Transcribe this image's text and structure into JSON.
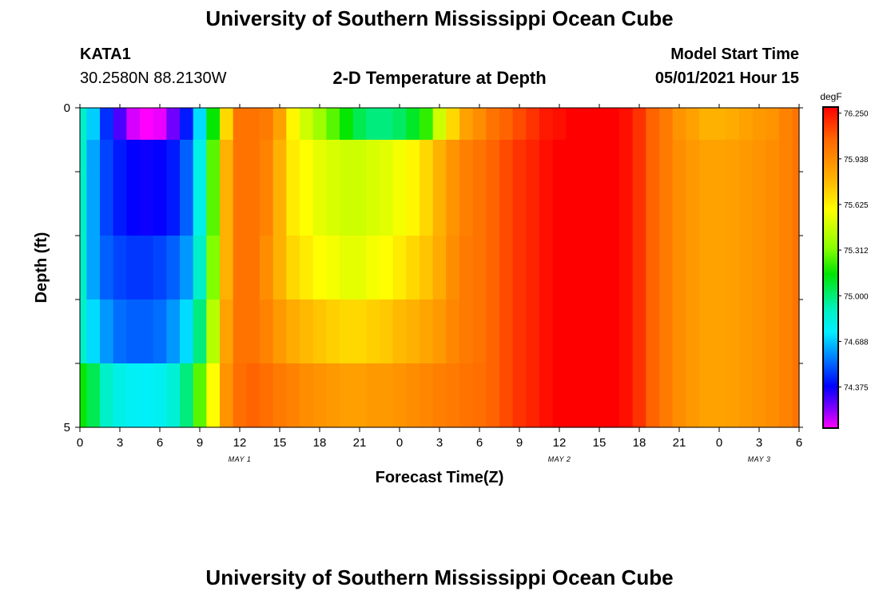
{
  "header": {
    "title": "University of Southern Mississippi Ocean Cube",
    "station": "KATA1",
    "coords": "30.2580N  88.2130W",
    "subtitle": "2-D Temperature at Depth",
    "model_start_label": "Model Start Time",
    "model_start_value": "05/01/2021 Hour 15"
  },
  "footer": {
    "title": "University of Southern Mississippi Ocean Cube"
  },
  "chart_data": {
    "type": "heatmap",
    "title": "2-D Temperature at Depth",
    "xlabel": "Forecast Time(Z)",
    "ylabel": "Depth (ft)",
    "x_tick_labels": [
      "0",
      "3",
      "6",
      "9",
      "12",
      "15",
      "18",
      "21",
      "0",
      "3",
      "6",
      "9",
      "12",
      "15",
      "18",
      "21",
      "0",
      "3",
      "6"
    ],
    "x_date_labels": [
      {
        "label": "MAY 1",
        "at_tick": 4
      },
      {
        "label": "MAY 2",
        "at_tick": 12
      },
      {
        "label": "MAY 3",
        "at_tick": 17
      }
    ],
    "x_hours_range": [
      0,
      54
    ],
    "y_tick_labels": [
      "0",
      "5"
    ],
    "ylim": [
      0,
      5
    ],
    "y_depth_levels": [
      0.5,
      1.5,
      2.5,
      3.5,
      4.5
    ],
    "colorbar": {
      "unit": "degF",
      "tick_labels": [
        "76.250",
        "75.938",
        "75.625",
        "75.312",
        "75.000",
        "74.688",
        "74.375"
      ],
      "min": 74.22,
      "max": 76.25
    },
    "time_hours": [
      0,
      1,
      2,
      3,
      4,
      5,
      6,
      7,
      8,
      9,
      10,
      11,
      12,
      13,
      14,
      15,
      16,
      17,
      18,
      19,
      20,
      21,
      22,
      23,
      24,
      25,
      26,
      27,
      28,
      29,
      30,
      31,
      32,
      33,
      34,
      35,
      36,
      37,
      38,
      39,
      40,
      41,
      42,
      43,
      44,
      45,
      46,
      47,
      48,
      49,
      50,
      51,
      52,
      53,
      54
    ],
    "temperature_degF": [
      [
        74.95,
        74.78,
        74.55,
        74.4,
        74.26,
        74.22,
        74.24,
        74.36,
        74.52,
        74.8,
        75.2,
        75.7,
        76.0,
        76.0,
        75.98,
        75.85,
        75.62,
        75.5,
        75.4,
        75.3,
        75.2,
        75.1,
        75.05,
        75.05,
        75.08,
        75.15,
        75.25,
        75.5,
        75.7,
        75.85,
        75.92,
        76.0,
        76.05,
        76.1,
        76.15,
        76.2,
        76.22,
        76.25,
        76.25,
        76.25,
        76.25,
        76.22,
        76.15,
        76.05,
        75.98,
        75.9,
        75.85,
        75.8,
        75.8,
        75.82,
        75.85,
        75.88,
        75.9,
        75.95,
        76.0
      ],
      [
        74.95,
        74.72,
        74.58,
        74.52,
        74.48,
        74.47,
        74.48,
        74.52,
        74.62,
        74.88,
        75.3,
        75.8,
        76.0,
        76.0,
        75.95,
        75.8,
        75.65,
        75.6,
        75.55,
        75.52,
        75.5,
        75.5,
        75.52,
        75.54,
        75.58,
        75.62,
        75.7,
        75.8,
        75.9,
        75.96,
        76.0,
        76.05,
        76.1,
        76.15,
        76.18,
        76.22,
        76.25,
        76.25,
        76.25,
        76.25,
        76.25,
        76.22,
        76.15,
        76.05,
        75.98,
        75.92,
        75.88,
        75.85,
        75.85,
        75.86,
        75.88,
        75.9,
        75.92,
        75.95,
        76.0
      ],
      [
        74.95,
        74.72,
        74.62,
        74.58,
        74.56,
        74.56,
        74.58,
        74.62,
        74.7,
        74.95,
        75.35,
        75.8,
        76.0,
        76.0,
        75.92,
        75.8,
        75.7,
        75.65,
        75.6,
        75.58,
        75.55,
        75.55,
        75.58,
        75.6,
        75.65,
        75.7,
        75.75,
        75.82,
        75.92,
        75.98,
        76.0,
        76.05,
        76.1,
        76.15,
        76.18,
        76.22,
        76.25,
        76.25,
        76.25,
        76.25,
        76.25,
        76.22,
        76.15,
        76.05,
        75.98,
        75.92,
        75.88,
        75.85,
        75.85,
        75.86,
        75.88,
        75.9,
        75.92,
        75.95,
        76.0
      ],
      [
        74.95,
        74.8,
        74.7,
        74.64,
        74.62,
        74.62,
        74.64,
        74.7,
        74.8,
        75.05,
        75.45,
        75.85,
        76.0,
        76.0,
        75.95,
        75.88,
        75.82,
        75.78,
        75.75,
        75.72,
        75.7,
        75.7,
        75.72,
        75.74,
        75.78,
        75.8,
        75.84,
        75.88,
        75.94,
        75.98,
        76.0,
        76.05,
        76.1,
        76.15,
        76.18,
        76.22,
        76.25,
        76.25,
        76.25,
        76.25,
        76.25,
        76.22,
        76.15,
        76.05,
        75.98,
        75.92,
        75.88,
        75.85,
        75.85,
        75.86,
        75.88,
        75.9,
        75.92,
        75.95,
        76.0
      ],
      [
        75.2,
        75.1,
        74.95,
        74.88,
        74.85,
        74.84,
        74.86,
        74.92,
        75.05,
        75.3,
        75.6,
        75.9,
        76.02,
        76.05,
        76.02,
        75.98,
        75.95,
        75.92,
        75.9,
        75.88,
        75.86,
        75.86,
        75.88,
        75.88,
        75.9,
        75.92,
        75.94,
        75.96,
        75.98,
        76.0,
        76.02,
        76.05,
        76.1,
        76.15,
        76.18,
        76.22,
        76.25,
        76.25,
        76.25,
        76.25,
        76.25,
        76.22,
        76.15,
        76.05,
        75.98,
        75.92,
        75.88,
        75.85,
        75.85,
        75.86,
        75.88,
        75.9,
        75.92,
        75.95,
        76.0
      ]
    ]
  }
}
